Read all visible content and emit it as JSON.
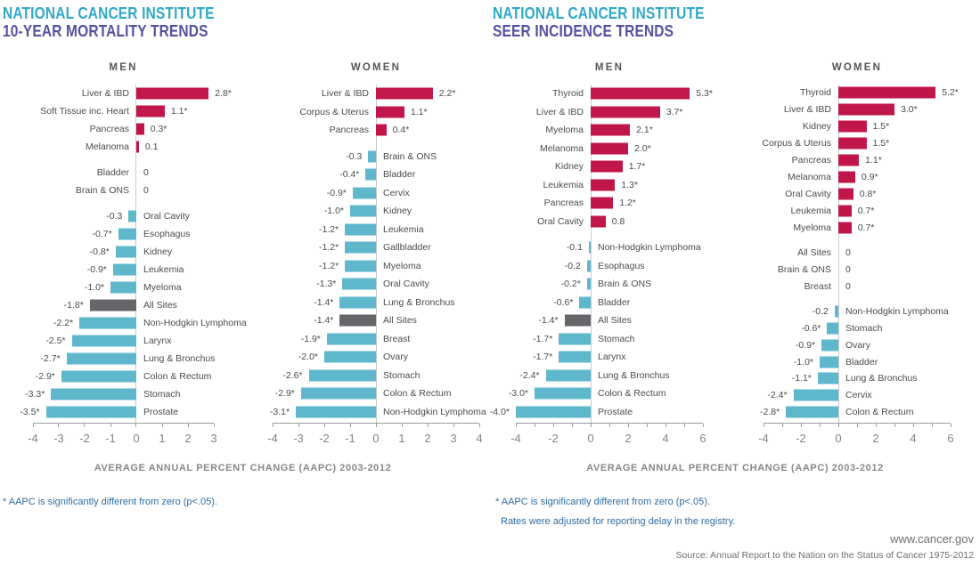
{
  "colors": {
    "title_teal": "#2fa9c4",
    "title_purple": "#564fa0",
    "increase_crimson": "#c0164a",
    "decrease_blue": "#5fb7cc",
    "all_sites_gray": "#66666a",
    "footnote_blue": "#2e6da4",
    "axis_gray": "#9a9b9e",
    "text_gray": "#4a4b4e"
  },
  "footer": {
    "site": "www.cancer.gov",
    "source": "Source: Annual Report to the Nation on the Status of Cancer 1975-2012"
  },
  "chart_data": [
    {
      "type": "bar",
      "orientation": "horizontal",
      "title": "NATIONAL CANCER INSTITUTE",
      "subtitle": "10-YEAR MORTALITY TRENDS",
      "xlabel": "AVERAGE ANNUAL PERCENT CHANGE (AAPC) 2003-2012",
      "footnotes": [
        "* AAPC is significantly different from zero (p<.05)."
      ],
      "panels": [
        {
          "header": "MEN",
          "xlim": [
            -4,
            3
          ],
          "ticks": [
            {
              "v": -4,
              "t": "-4"
            },
            {
              "v": -3,
              "t": "-3"
            },
            {
              "v": -2,
              "t": "-2"
            },
            {
              "v": -1,
              "t": "-1"
            },
            {
              "v": 0,
              "t": "0"
            },
            {
              "v": 1,
              "t": "1"
            },
            {
              "v": 2,
              "t": "2"
            },
            {
              "v": 3,
              "t": "3"
            }
          ],
          "rows": [
            {
              "category": "Liver & IBD",
              "value": 2.8,
              "label": "2.8*",
              "kind": "increase",
              "gap_before": false
            },
            {
              "category": "Soft Tissue inc. Heart",
              "value": 1.1,
              "label": "1.1*",
              "kind": "increase",
              "gap_before": false
            },
            {
              "category": "Pancreas",
              "value": 0.3,
              "label": "0.3*",
              "kind": "increase",
              "gap_before": false
            },
            {
              "category": "Melanoma",
              "value": 0.1,
              "label": "0.1",
              "kind": "increase",
              "gap_before": false
            },
            {
              "category": "Bladder",
              "value": 0,
              "label": "0",
              "kind": "zero",
              "gap_before": true
            },
            {
              "category": "Brain & ONS",
              "value": 0,
              "label": "0",
              "kind": "zero",
              "gap_before": false
            },
            {
              "category": "Oral Cavity",
              "value": -0.3,
              "label": "-0.3",
              "kind": "decrease",
              "gap_before": true
            },
            {
              "category": "Esophagus",
              "value": -0.7,
              "label": "-0.7*",
              "kind": "decrease",
              "gap_before": false
            },
            {
              "category": "Kidney",
              "value": -0.8,
              "label": "-0.8*",
              "kind": "decrease",
              "gap_before": false
            },
            {
              "category": "Leukemia",
              "value": -0.9,
              "label": "-0.9*",
              "kind": "decrease",
              "gap_before": false
            },
            {
              "category": "Myeloma",
              "value": -1.0,
              "label": "-1.0*",
              "kind": "decrease",
              "gap_before": false
            },
            {
              "category": "All Sites",
              "value": -1.8,
              "label": "-1.8*",
              "kind": "all_sites",
              "gap_before": false
            },
            {
              "category": "Non-Hodgkin Lymphoma",
              "value": -2.2,
              "label": "-2.2*",
              "kind": "decrease",
              "gap_before": false
            },
            {
              "category": "Larynx",
              "value": -2.5,
              "label": "-2.5*",
              "kind": "decrease",
              "gap_before": false
            },
            {
              "category": "Lung & Bronchus",
              "value": -2.7,
              "label": "-2.7*",
              "kind": "decrease",
              "gap_before": false
            },
            {
              "category": "Colon & Rectum",
              "value": -2.9,
              "label": "-2.9*",
              "kind": "decrease",
              "gap_before": false
            },
            {
              "category": "Stomach",
              "value": -3.3,
              "label": "-3.3*",
              "kind": "decrease",
              "gap_before": false
            },
            {
              "category": "Prostate",
              "value": -3.5,
              "label": "-3.5*",
              "kind": "decrease",
              "gap_before": false
            }
          ]
        },
        {
          "header": "WOMEN",
          "xlim": [
            -4,
            4
          ],
          "ticks": [
            {
              "v": -4,
              "t": "-4"
            },
            {
              "v": -3,
              "t": "-3"
            },
            {
              "v": -2,
              "t": "-2"
            },
            {
              "v": -1,
              "t": "-1"
            },
            {
              "v": 0,
              "t": "0"
            },
            {
              "v": 1,
              "t": "1"
            },
            {
              "v": 2,
              "t": "2"
            },
            {
              "v": 3,
              "t": "3"
            },
            {
              "v": 4,
              "t": "4"
            }
          ],
          "rows": [
            {
              "category": "Liver & IBD",
              "value": 2.2,
              "label": "2.2*",
              "kind": "increase",
              "gap_before": false
            },
            {
              "category": "Corpus & Uterus",
              "value": 1.1,
              "label": "1.1*",
              "kind": "increase",
              "gap_before": false
            },
            {
              "category": "Pancreas",
              "value": 0.4,
              "label": "0.4*",
              "kind": "increase",
              "gap_before": false
            },
            {
              "category": "Brain & ONS",
              "value": -0.3,
              "label": "-0.3",
              "kind": "decrease",
              "gap_before": true
            },
            {
              "category": "Bladder",
              "value": -0.4,
              "label": "-0.4*",
              "kind": "decrease",
              "gap_before": false
            },
            {
              "category": "Cervix",
              "value": -0.9,
              "label": "-0.9*",
              "kind": "decrease",
              "gap_before": false
            },
            {
              "category": "Kidney",
              "value": -1.0,
              "label": "-1.0*",
              "kind": "decrease",
              "gap_before": false
            },
            {
              "category": "Leukemia",
              "value": -1.2,
              "label": "-1.2*",
              "kind": "decrease",
              "gap_before": false
            },
            {
              "category": "Gallbladder",
              "value": -1.2,
              "label": "-1.2*",
              "kind": "decrease",
              "gap_before": false
            },
            {
              "category": "Myeloma",
              "value": -1.2,
              "label": "-1.2*",
              "kind": "decrease",
              "gap_before": false
            },
            {
              "category": "Oral Cavity",
              "value": -1.3,
              "label": "-1.3*",
              "kind": "decrease",
              "gap_before": false
            },
            {
              "category": "Lung & Bronchus",
              "value": -1.4,
              "label": "-1.4*",
              "kind": "decrease",
              "gap_before": false
            },
            {
              "category": "All Sites",
              "value": -1.4,
              "label": "-1.4*",
              "kind": "all_sites",
              "gap_before": false
            },
            {
              "category": "Breast",
              "value": -1.9,
              "label": "-1.9*",
              "kind": "decrease",
              "gap_before": false
            },
            {
              "category": "Ovary",
              "value": -2.0,
              "label": "-2.0*",
              "kind": "decrease",
              "gap_before": false
            },
            {
              "category": "Stomach",
              "value": -2.6,
              "label": "-2.6*",
              "kind": "decrease",
              "gap_before": false
            },
            {
              "category": "Colon & Rectum",
              "value": -2.9,
              "label": "-2.9*",
              "kind": "decrease",
              "gap_before": false
            },
            {
              "category": "Non-Hodgkin Lymphoma",
              "value": -3.1,
              "label": "-3.1*",
              "kind": "decrease",
              "gap_before": false
            }
          ]
        }
      ]
    },
    {
      "type": "bar",
      "orientation": "horizontal",
      "title": "NATIONAL CANCER INSTITUTE",
      "subtitle": "SEER INCIDENCE TRENDS",
      "xlabel": "AVERAGE ANNUAL PERCENT CHANGE (AAPC) 2003-2012",
      "footnotes": [
        "* AAPC is significantly different from zero (p<.05).",
        "Rates were adjusted for reporting delay in the registry."
      ],
      "panels": [
        {
          "header": "MEN",
          "xlim": [
            -4,
            6
          ],
          "ticks": [
            {
              "v": -4,
              "t": "-4"
            },
            {
              "v": -3,
              "t": ""
            },
            {
              "v": -2,
              "t": "-2"
            },
            {
              "v": -1,
              "t": ""
            },
            {
              "v": 0,
              "t": "0"
            },
            {
              "v": 1,
              "t": ""
            },
            {
              "v": 2,
              "t": "2"
            },
            {
              "v": 3,
              "t": ""
            },
            {
              "v": 4,
              "t": "4"
            },
            {
              "v": 5,
              "t": ""
            },
            {
              "v": 6,
              "t": "6"
            }
          ],
          "rows": [
            {
              "category": "Thyroid",
              "value": 5.3,
              "label": "5.3*",
              "kind": "increase",
              "gap_before": false
            },
            {
              "category": "Liver & IBD",
              "value": 3.7,
              "label": "3.7*",
              "kind": "increase",
              "gap_before": false
            },
            {
              "category": "Myeloma",
              "value": 2.1,
              "label": "2.1*",
              "kind": "increase",
              "gap_before": false
            },
            {
              "category": "Melanoma",
              "value": 2.0,
              "label": "2.0*",
              "kind": "increase",
              "gap_before": false
            },
            {
              "category": "Kidney",
              "value": 1.7,
              "label": "1.7*",
              "kind": "increase",
              "gap_before": false
            },
            {
              "category": "Leukemia",
              "value": 1.3,
              "label": "1.3*",
              "kind": "increase",
              "gap_before": false
            },
            {
              "category": "Pancreas",
              "value": 1.2,
              "label": "1.2*",
              "kind": "increase",
              "gap_before": false
            },
            {
              "category": "Oral Cavity",
              "value": 0.8,
              "label": "0.8",
              "kind": "increase",
              "gap_before": false
            },
            {
              "category": "Non-Hodgkin Lymphoma",
              "value": -0.1,
              "label": "-0.1",
              "kind": "decrease",
              "gap_before": true
            },
            {
              "category": "Esophagus",
              "value": -0.2,
              "label": "-0.2",
              "kind": "decrease",
              "gap_before": false
            },
            {
              "category": "Brain & ONS",
              "value": -0.2,
              "label": "-0.2*",
              "kind": "decrease",
              "gap_before": false
            },
            {
              "category": "Bladder",
              "value": -0.6,
              "label": "-0.6*",
              "kind": "decrease",
              "gap_before": false
            },
            {
              "category": "All Sites",
              "value": -1.4,
              "label": "-1.4*",
              "kind": "all_sites",
              "gap_before": false
            },
            {
              "category": "Stomach",
              "value": -1.7,
              "label": "-1.7*",
              "kind": "decrease",
              "gap_before": false
            },
            {
              "category": "Larynx",
              "value": -1.7,
              "label": "-1.7*",
              "kind": "decrease",
              "gap_before": false
            },
            {
              "category": "Lung & Bronchus",
              "value": -2.4,
              "label": "-2.4*",
              "kind": "decrease",
              "gap_before": false
            },
            {
              "category": "Colon & Rectum",
              "value": -3.0,
              "label": "-3.0*",
              "kind": "decrease",
              "gap_before": false
            },
            {
              "category": "Prostate",
              "value": -4.0,
              "label": "-4.0*",
              "kind": "decrease",
              "gap_before": false
            }
          ]
        },
        {
          "header": "WOMEN",
          "xlim": [
            -4,
            6
          ],
          "ticks": [
            {
              "v": -4,
              "t": "-4"
            },
            {
              "v": -3,
              "t": ""
            },
            {
              "v": -2,
              "t": "-2"
            },
            {
              "v": -1,
              "t": ""
            },
            {
              "v": 0,
              "t": "0"
            },
            {
              "v": 1,
              "t": ""
            },
            {
              "v": 2,
              "t": "2"
            },
            {
              "v": 3,
              "t": ""
            },
            {
              "v": 4,
              "t": "4"
            },
            {
              "v": 5,
              "t": ""
            },
            {
              "v": 6,
              "t": "6"
            }
          ],
          "rows": [
            {
              "category": "Thyroid",
              "value": 5.2,
              "label": "5.2*",
              "kind": "increase",
              "gap_before": false
            },
            {
              "category": "Liver & IBD",
              "value": 3.0,
              "label": "3.0*",
              "kind": "increase",
              "gap_before": false
            },
            {
              "category": "Kidney",
              "value": 1.5,
              "label": "1.5*",
              "kind": "increase",
              "gap_before": false
            },
            {
              "category": "Corpus & Uterus",
              "value": 1.5,
              "label": "1.5*",
              "kind": "increase",
              "gap_before": false
            },
            {
              "category": "Pancreas",
              "value": 1.1,
              "label": "1.1*",
              "kind": "increase",
              "gap_before": false
            },
            {
              "category": "Melanoma",
              "value": 0.9,
              "label": "0.9*",
              "kind": "increase",
              "gap_before": false
            },
            {
              "category": "Oral Cavity",
              "value": 0.8,
              "label": "0.8*",
              "kind": "increase",
              "gap_before": false
            },
            {
              "category": "Leukemia",
              "value": 0.7,
              "label": "0.7*",
              "kind": "increase",
              "gap_before": false
            },
            {
              "category": "Myeloma",
              "value": 0.7,
              "label": "0.7*",
              "kind": "increase",
              "gap_before": false
            },
            {
              "category": "All Sites",
              "value": 0,
              "label": "0",
              "kind": "zero",
              "gap_before": true
            },
            {
              "category": "Brain & ONS",
              "value": 0,
              "label": "0",
              "kind": "zero",
              "gap_before": false
            },
            {
              "category": "Breast",
              "value": 0,
              "label": "0",
              "kind": "zero",
              "gap_before": false
            },
            {
              "category": "Non-Hodgkin Lymphoma",
              "value": -0.2,
              "label": "-0.2",
              "kind": "decrease",
              "gap_before": true
            },
            {
              "category": "Stomach",
              "value": -0.6,
              "label": "-0.6*",
              "kind": "decrease",
              "gap_before": false
            },
            {
              "category": "Ovary",
              "value": -0.9,
              "label": "-0.9*",
              "kind": "decrease",
              "gap_before": false
            },
            {
              "category": "Bladder",
              "value": -1.0,
              "label": "-1.0*",
              "kind": "decrease",
              "gap_before": false
            },
            {
              "category": "Lung & Bronchus",
              "value": -1.1,
              "label": "-1.1*",
              "kind": "decrease",
              "gap_before": false
            },
            {
              "category": "Cervix",
              "value": -2.4,
              "label": "-2.4*",
              "kind": "decrease",
              "gap_before": false
            },
            {
              "category": "Colon & Rectum",
              "value": -2.8,
              "label": "-2.8*",
              "kind": "decrease",
              "gap_before": false
            }
          ]
        }
      ]
    }
  ]
}
